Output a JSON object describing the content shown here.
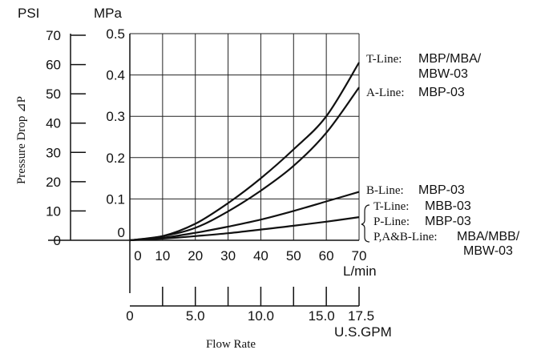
{
  "chart_data": {
    "type": "line",
    "title": "",
    "ylabel": "Pressure Drop ⊿P",
    "xlabel": "Flow Rate",
    "x_unit_lmin": "L/min",
    "x_unit_gpm": "U.S.GPM",
    "y_unit_psi": "PSI",
    "y_unit_mpa": "MPa",
    "xlim": [
      0,
      70
    ],
    "ylim_mpa": [
      0,
      0.5
    ],
    "grid": true,
    "x_ticks_lmin": [
      "0",
      "10",
      "20",
      "30",
      "40",
      "50",
      "60",
      "70"
    ],
    "x_ticks_gpm": [
      "0",
      "5.0",
      "10.0",
      "15.0",
      "17.5"
    ],
    "y_ticks_mpa": [
      "0",
      "0.1",
      "0.2",
      "0.3",
      "0.4",
      "0.5"
    ],
    "y_ticks_psi": [
      "0",
      "10",
      "20",
      "30",
      "40",
      "50",
      "60",
      "70"
    ],
    "series": [
      {
        "line": "T-Line:",
        "model": "MBP/MBA/",
        "model2": "MBW-03",
        "x": [
          0,
          10,
          20,
          30,
          40,
          50,
          60,
          70
        ],
        "y": [
          0,
          0.01,
          0.04,
          0.09,
          0.15,
          0.22,
          0.3,
          0.43
        ]
      },
      {
        "line": "A-Line:",
        "model": "MBP-03",
        "x": [
          0,
          10,
          20,
          30,
          40,
          50,
          60,
          70
        ],
        "y": [
          0,
          0.01,
          0.03,
          0.07,
          0.12,
          0.18,
          0.26,
          0.37
        ]
      },
      {
        "line": "B-Line:",
        "model": "MBP-03",
        "x": [
          0,
          10,
          20,
          30,
          40,
          50,
          60,
          70
        ],
        "y": [
          0,
          0.006,
          0.018,
          0.033,
          0.05,
          0.071,
          0.094,
          0.117
        ]
      },
      {
        "line": "T-Line:",
        "model": "MBB-03",
        "line2": "P-Line:",
        "model_b": "MBP-03",
        "line3": "P,A&B-Line:",
        "model_c": "MBA/MBB/",
        "model_c2": "MBW-03",
        "x": [
          0,
          10,
          20,
          30,
          40,
          50,
          60,
          70
        ],
        "y": [
          0,
          0.004,
          0.01,
          0.017,
          0.026,
          0.035,
          0.045,
          0.056
        ]
      }
    ]
  }
}
